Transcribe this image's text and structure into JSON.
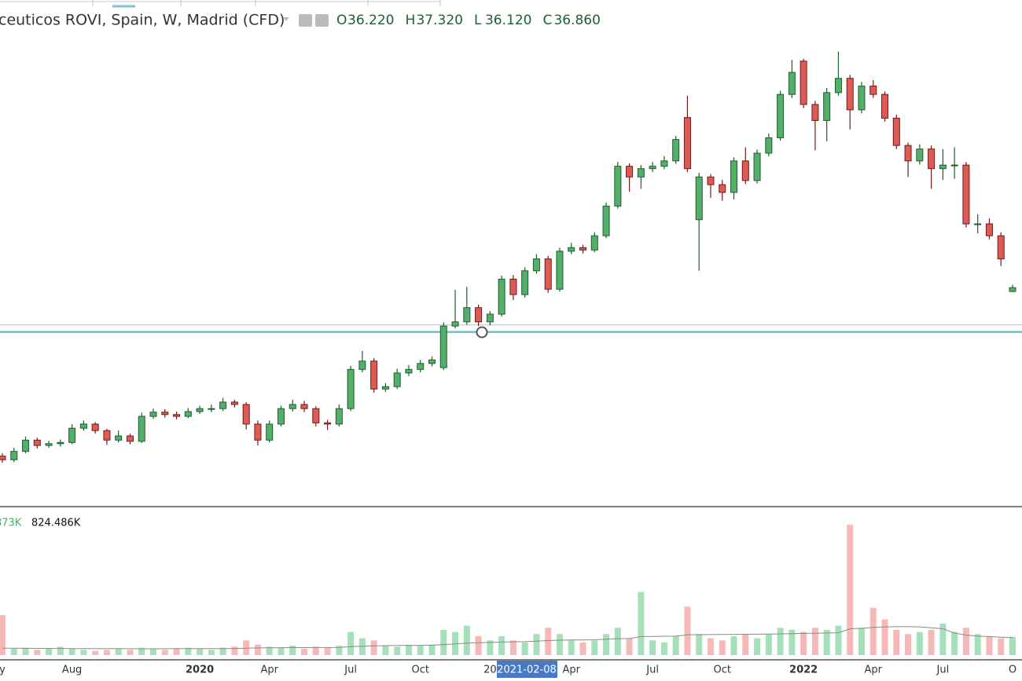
{
  "chart_data": {
    "type": "candlestick",
    "title": "ceuticos ROVI, Spain, W, Madrid (CFD)",
    "legend_names": [
      "O",
      "H",
      "L",
      "C"
    ],
    "legend_values": [
      "36.220",
      "37.320",
      "36.120",
      "36.860"
    ],
    "categories": [
      "y",
      null,
      null,
      null,
      null,
      null,
      "Aug",
      null,
      null,
      null,
      null,
      null,
      null,
      null,
      null,
      null,
      null,
      "2020",
      null,
      null,
      null,
      null,
      null,
      "Apr",
      null,
      null,
      null,
      null,
      null,
      null,
      "Jul",
      null,
      null,
      null,
      null,
      null,
      "Oct",
      null,
      null,
      null,
      null,
      null,
      "20",
      null,
      null,
      null,
      null,
      null,
      null,
      "Apr",
      null,
      null,
      null,
      null,
      null,
      null,
      "Jul",
      null,
      null,
      null,
      null,
      null,
      "Oct",
      null,
      null,
      null,
      null,
      null,
      null,
      "2022",
      null,
      null,
      null,
      null,
      null,
      "Apr",
      null,
      null,
      null,
      null,
      null,
      "Jul",
      null,
      null,
      null,
      null,
      null,
      "O"
    ],
    "crosshair_label": "2021-02-08",
    "ylim": [
      0,
      80
    ],
    "up_color": "#53b06a",
    "down_color": "#df5a55",
    "up_border": "#1f5c2e",
    "down_border": "#6e1b1b",
    "hlines": [
      30.6,
      29.4
    ],
    "hline_colors": [
      "#a9d9e2",
      "#62c3ca"
    ],
    "ohlc": [
      [
        8.5,
        9.0,
        7.4,
        7.9
      ],
      [
        7.9,
        9.9,
        7.5,
        9.3
      ],
      [
        9.3,
        11.8,
        9.0,
        11.2
      ],
      [
        11.2,
        11.6,
        9.8,
        10.3
      ],
      [
        10.3,
        11.1,
        9.9,
        10.6
      ],
      [
        10.6,
        11.3,
        10.1,
        10.8
      ],
      [
        10.8,
        13.9,
        10.5,
        13.2
      ],
      [
        13.2,
        14.5,
        12.8,
        13.9
      ],
      [
        13.9,
        14.2,
        12.3,
        12.8
      ],
      [
        12.8,
        13.1,
        10.4,
        11.2
      ],
      [
        11.2,
        12.8,
        10.8,
        11.9
      ],
      [
        11.9,
        12.3,
        10.5,
        11.0
      ],
      [
        11.0,
        15.8,
        10.7,
        15.2
      ],
      [
        15.2,
        16.5,
        14.8,
        15.9
      ],
      [
        15.9,
        16.4,
        15.0,
        15.5
      ],
      [
        15.5,
        16.0,
        14.7,
        15.2
      ],
      [
        15.2,
        16.6,
        14.9,
        16.0
      ],
      [
        16.0,
        17.0,
        15.6,
        16.5
      ],
      [
        16.5,
        17.2,
        15.9,
        16.5
      ],
      [
        16.5,
        18.3,
        16.1,
        17.6
      ],
      [
        17.6,
        18.0,
        16.7,
        17.2
      ],
      [
        17.2,
        17.6,
        13.0,
        13.9
      ],
      [
        13.9,
        14.5,
        10.3,
        11.2
      ],
      [
        11.2,
        14.5,
        10.8,
        13.9
      ],
      [
        13.9,
        17.0,
        13.5,
        16.5
      ],
      [
        16.5,
        18.0,
        16.0,
        17.2
      ],
      [
        17.2,
        17.8,
        15.9,
        16.5
      ],
      [
        16.5,
        16.9,
        13.5,
        14.1
      ],
      [
        14.1,
        14.6,
        12.9,
        13.9
      ],
      [
        13.9,
        17.2,
        13.5,
        16.5
      ],
      [
        16.5,
        23.7,
        16.1,
        23.1
      ],
      [
        23.1,
        26.2,
        22.6,
        24.5
      ],
      [
        24.5,
        25.0,
        19.2,
        19.8
      ],
      [
        19.8,
        20.8,
        19.3,
        20.2
      ],
      [
        20.2,
        23.2,
        19.8,
        22.5
      ],
      [
        22.5,
        23.8,
        22.0,
        23.1
      ],
      [
        23.1,
        24.7,
        22.6,
        24.1
      ],
      [
        24.1,
        25.3,
        23.6,
        24.7
      ],
      [
        23.4,
        31.0,
        23.0,
        30.4
      ],
      [
        30.4,
        36.5,
        30.0,
        31.1
      ],
      [
        31.1,
        37.0,
        30.6,
        33.5
      ],
      [
        33.5,
        34.0,
        30.4,
        31.1
      ],
      [
        31.1,
        32.9,
        30.5,
        32.4
      ],
      [
        32.4,
        38.9,
        32.0,
        38.3
      ],
      [
        38.3,
        39.0,
        34.8,
        35.7
      ],
      [
        35.7,
        40.3,
        35.2,
        39.7
      ],
      [
        39.7,
        42.5,
        39.2,
        41.7
      ],
      [
        41.7,
        42.2,
        36.0,
        36.6
      ],
      [
        36.6,
        43.6,
        36.2,
        43.0
      ],
      [
        43.0,
        44.4,
        42.5,
        43.6
      ],
      [
        43.6,
        44.1,
        42.6,
        43.2
      ],
      [
        43.2,
        46.2,
        42.8,
        45.6
      ],
      [
        45.6,
        51.2,
        45.2,
        50.6
      ],
      [
        50.6,
        58.0,
        50.2,
        57.3
      ],
      [
        57.3,
        57.8,
        53.0,
        55.5
      ],
      [
        55.5,
        57.5,
        53.5,
        56.9
      ],
      [
        56.9,
        58.0,
        56.3,
        57.3
      ],
      [
        57.3,
        59.0,
        56.8,
        58.2
      ],
      [
        58.2,
        62.4,
        57.7,
        61.8
      ],
      [
        65.5,
        69.2,
        56.3,
        56.9
      ],
      [
        48.3,
        56.2,
        39.7,
        55.5
      ],
      [
        55.5,
        56.0,
        52.0,
        54.2
      ],
      [
        54.2,
        55.0,
        51.5,
        52.9
      ],
      [
        52.9,
        58.8,
        51.7,
        58.2
      ],
      [
        58.2,
        60.5,
        54.3,
        54.9
      ],
      [
        54.9,
        60.1,
        54.4,
        59.5
      ],
      [
        59.5,
        62.8,
        59.0,
        62.1
      ],
      [
        62.1,
        70.0,
        61.6,
        69.4
      ],
      [
        69.4,
        75.2,
        68.8,
        73.1
      ],
      [
        75.0,
        75.4,
        67.1,
        67.7
      ],
      [
        67.7,
        68.3,
        60.0,
        65.0
      ],
      [
        65.0,
        70.5,
        61.5,
        69.7
      ],
      [
        69.7,
        76.6,
        69.2,
        72.1
      ],
      [
        72.1,
        72.7,
        63.5,
        66.8
      ],
      [
        66.8,
        71.5,
        66.2,
        70.8
      ],
      [
        70.8,
        71.8,
        68.8,
        69.4
      ],
      [
        69.4,
        69.9,
        64.8,
        65.4
      ],
      [
        65.4,
        66.0,
        60.2,
        60.8
      ],
      [
        60.8,
        61.3,
        55.5,
        58.2
      ],
      [
        58.2,
        61.0,
        57.6,
        60.2
      ],
      [
        60.2,
        60.8,
        53.5,
        56.9
      ],
      [
        56.9,
        60.2,
        55.0,
        57.5
      ],
      [
        57.5,
        60.5,
        55.2,
        57.5
      ],
      [
        57.5,
        58.0,
        47.0,
        47.6
      ],
      [
        47.6,
        49.2,
        46.0,
        47.6
      ],
      [
        47.6,
        48.5,
        45.0,
        45.6
      ],
      [
        45.6,
        46.2,
        40.5,
        41.7
      ],
      [
        36.22,
        37.32,
        36.12,
        36.86
      ]
    ],
    "volume": [
      1900,
      300,
      350,
      250,
      300,
      400,
      300,
      250,
      200,
      250,
      300,
      250,
      350,
      300,
      250,
      300,
      350,
      300,
      250,
      350,
      400,
      700,
      500,
      400,
      350,
      450,
      300,
      400,
      350,
      450,
      1100,
      800,
      700,
      450,
      400,
      500,
      450,
      500,
      1200,
      1100,
      1400,
      900,
      700,
      900,
      700,
      600,
      1000,
      1300,
      1000,
      700,
      600,
      700,
      1000,
      1300,
      800,
      3000,
      700,
      600,
      900,
      2300,
      1000,
      800,
      700,
      900,
      1000,
      800,
      1000,
      1300,
      1200,
      1100,
      1300,
      1200,
      1400,
      6200,
      1300,
      2250,
      1700,
      1200,
      1000,
      1100,
      1200,
      1500,
      1100,
      1300,
      1000,
      900,
      800,
      873
    ],
    "volume_value_label": "873K",
    "volume_ma": [
      330,
      325,
      320,
      318,
      315,
      312,
      310,
      308,
      305,
      305,
      305,
      303,
      300,
      300,
      302,
      305,
      305,
      305,
      308,
      310,
      315,
      330,
      340,
      345,
      350,
      355,
      355,
      360,
      360,
      365,
      400,
      420,
      440,
      450,
      455,
      460,
      465,
      470,
      500,
      530,
      570,
      590,
      600,
      620,
      630,
      640,
      660,
      690,
      710,
      720,
      720,
      730,
      750,
      780,
      790,
      880,
      890,
      895,
      900,
      960,
      970,
      975,
      980,
      985,
      990,
      995,
      1000,
      1010,
      1020,
      1030,
      1040,
      1050,
      1060,
      1250,
      1270,
      1320,
      1340,
      1350,
      1350,
      1340,
      1300,
      1250,
      1050,
      950,
      900,
      880,
      850,
      824.486
    ],
    "volume_ma_label": "824.486K",
    "volume_ylim": [
      0,
      6800
    ],
    "volume_up_color": "#a6e0bb",
    "volume_down_color": "#f6b9b6",
    "volume_ma_color": "#8a8a8a"
  }
}
